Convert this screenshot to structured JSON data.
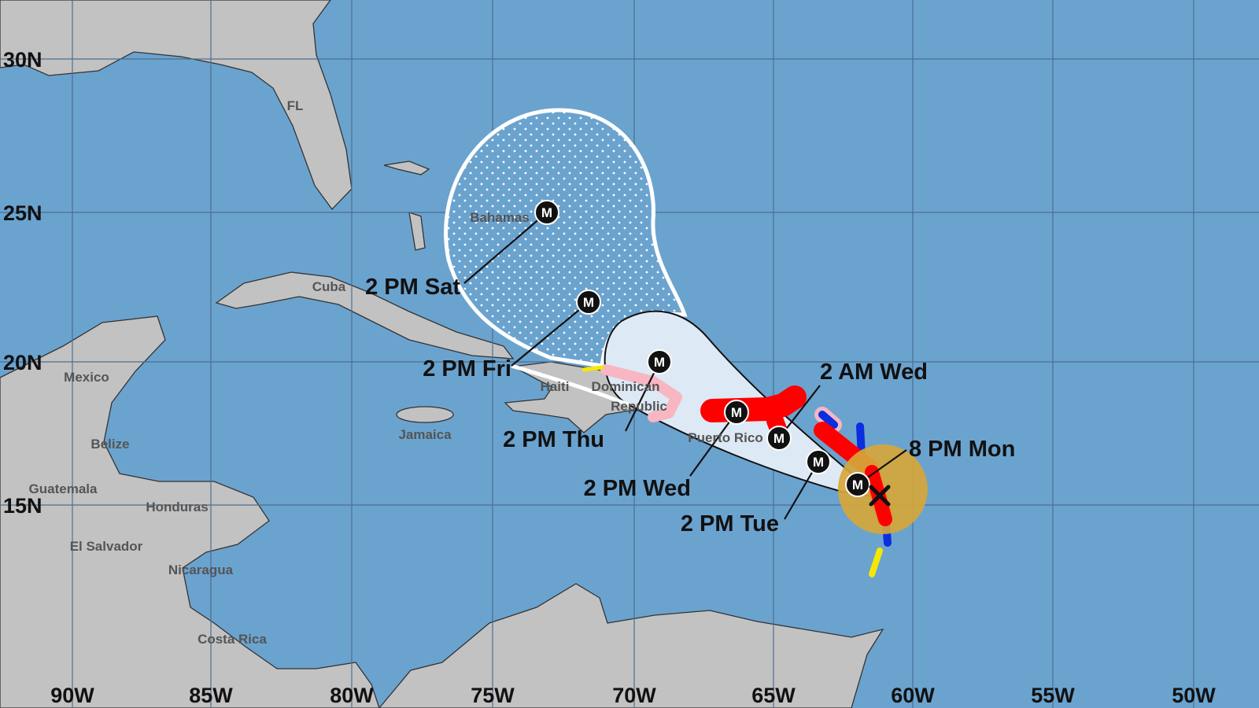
{
  "colors": {
    "ocean": "#6ba3cf",
    "land": "#c2c2c2",
    "cone_days_1_3": "#dde9f4",
    "cone_days_4_5_stipple": "#ffffff",
    "hurricane_warning": "#ff0000",
    "hurricane_watch": "#f7b6c2",
    "tropical_storm_warning": "#0a2ee0",
    "tropical_storm_watch": "#f5e800",
    "wind_field": "#d6a63a"
  },
  "longitude_labels": [
    "90W",
    "85W",
    "80W",
    "75W",
    "70W",
    "65W",
    "60W",
    "55W",
    "50W"
  ],
  "latitude_labels": [
    "30N",
    "25N",
    "20N",
    "15N"
  ],
  "places": [
    "FL",
    "Bahamas",
    "Cuba",
    "Mexico",
    "Haiti",
    "Dominican",
    "Republic",
    "Jamaica",
    "Puerto Rico",
    "Belize",
    "Guatemala",
    "Honduras",
    "El Salvador",
    "Nicaragua",
    "Costa Rica"
  ],
  "current_position_icon": "x-mark-icon",
  "forecast_points": [
    {
      "label": "8 PM Mon",
      "marker": "M"
    },
    {
      "label": "2 PM Tue",
      "marker": "M"
    },
    {
      "label": "2 AM Wed",
      "marker": "M"
    },
    {
      "label": "2 PM Wed",
      "marker": "M"
    },
    {
      "label": "2 PM Thu",
      "marker": "M"
    },
    {
      "label": "2 PM Fri",
      "marker": "M"
    },
    {
      "label": "2 PM Sat",
      "marker": "M"
    }
  ]
}
